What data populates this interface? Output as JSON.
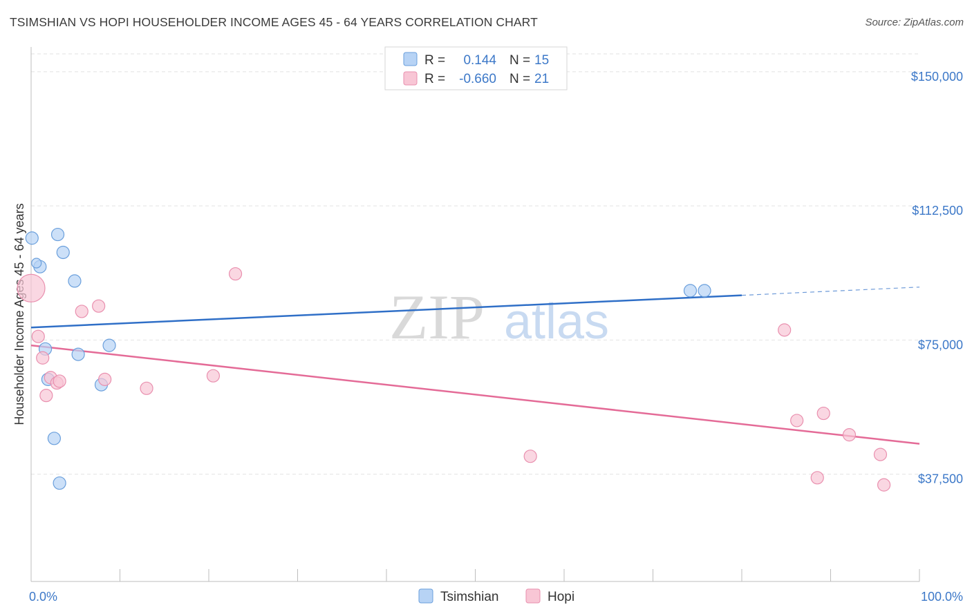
{
  "header": {
    "title": "TSIMSHIAN VS HOPI HOUSEHOLDER INCOME AGES 45 - 64 YEARS CORRELATION CHART",
    "source": "Source: ZipAtlas.com"
  },
  "colors": {
    "tsimshian_fill": "#b7d3f5",
    "tsimshian_stroke": "#6a9fdc",
    "tsimshian_line": "#2f6fc7",
    "hopi_fill": "#f8c6d5",
    "hopi_stroke": "#e98fae",
    "hopi_line": "#e46b97",
    "grid": "#e2e2e2",
    "axis_text": "#3c78c8"
  },
  "legend": {
    "rows": [
      {
        "r_label": "R =",
        "r_value": "0.144",
        "n_label": "N =",
        "n_value": "15"
      },
      {
        "r_label": "R =",
        "r_value": "-0.660",
        "n_label": "N =",
        "n_value": "21"
      }
    ]
  },
  "watermark": {
    "zip": "ZIP",
    "atlas": "atlas"
  },
  "chart_data": {
    "type": "scatter",
    "title": "TSIMSHIAN VS HOPI HOUSEHOLDER INCOME AGES 45 - 64 YEARS CORRELATION CHART",
    "xlabel": "",
    "ylabel": "Householder Income Ages 45 - 64 years",
    "xlim": [
      0,
      100
    ],
    "ylim": [
      7500,
      155000
    ],
    "x_tick_labels": [
      "0.0%",
      "100.0%"
    ],
    "y_ticks": [
      37500,
      75000,
      112500,
      150000
    ],
    "y_tick_labels": [
      "$37,500",
      "$75,000",
      "$112,500",
      "$150,000"
    ],
    "series": [
      {
        "name": "Tsimshian",
        "points": [
          {
            "x": 0.1,
            "y": 103500,
            "r": 9
          },
          {
            "x": 1.0,
            "y": 95500,
            "r": 9
          },
          {
            "x": 3.0,
            "y": 104500,
            "r": 9
          },
          {
            "x": 3.6,
            "y": 99500,
            "r": 9
          },
          {
            "x": 4.9,
            "y": 91500,
            "r": 9
          },
          {
            "x": 1.6,
            "y": 72500,
            "r": 9
          },
          {
            "x": 5.3,
            "y": 71000,
            "r": 9
          },
          {
            "x": 8.8,
            "y": 73500,
            "r": 9
          },
          {
            "x": 1.9,
            "y": 64000,
            "r": 9
          },
          {
            "x": 7.9,
            "y": 62500,
            "r": 9
          },
          {
            "x": 2.6,
            "y": 47500,
            "r": 9
          },
          {
            "x": 3.2,
            "y": 35000,
            "r": 9
          },
          {
            "x": 74.2,
            "y": 88800,
            "r": 9
          },
          {
            "x": 75.8,
            "y": 88800,
            "r": 9
          },
          {
            "x": 0.6,
            "y": 96500,
            "r": 7
          }
        ],
        "trend": {
          "x0": 0,
          "y0": 78500,
          "x1": 80,
          "y1": 87500,
          "dash_to_x": 100,
          "dash_to_y": 89800
        }
      },
      {
        "name": "Hopi",
        "points": [
          {
            "x": 0.0,
            "y": 89500,
            "r": 20
          },
          {
            "x": 0.8,
            "y": 76000,
            "r": 9
          },
          {
            "x": 1.3,
            "y": 70000,
            "r": 9
          },
          {
            "x": 1.7,
            "y": 59500,
            "r": 9
          },
          {
            "x": 2.2,
            "y": 64500,
            "r": 9
          },
          {
            "x": 2.9,
            "y": 63000,
            "r": 9
          },
          {
            "x": 3.2,
            "y": 63500,
            "r": 9
          },
          {
            "x": 5.7,
            "y": 83000,
            "r": 9
          },
          {
            "x": 7.6,
            "y": 84500,
            "r": 9
          },
          {
            "x": 8.3,
            "y": 64000,
            "r": 9
          },
          {
            "x": 13.0,
            "y": 61500,
            "r": 9
          },
          {
            "x": 20.5,
            "y": 65000,
            "r": 9
          },
          {
            "x": 23.0,
            "y": 93500,
            "r": 9
          },
          {
            "x": 56.2,
            "y": 42500,
            "r": 9
          },
          {
            "x": 84.8,
            "y": 77800,
            "r": 9
          },
          {
            "x": 86.2,
            "y": 52500,
            "r": 9
          },
          {
            "x": 88.5,
            "y": 36500,
            "r": 9
          },
          {
            "x": 89.2,
            "y": 54500,
            "r": 9
          },
          {
            "x": 92.1,
            "y": 48500,
            "r": 9
          },
          {
            "x": 95.6,
            "y": 43000,
            "r": 9
          },
          {
            "x": 96.0,
            "y": 34500,
            "r": 9
          }
        ],
        "trend": {
          "x0": 0,
          "y0": 73500,
          "x1": 100,
          "y1": 46000
        }
      }
    ]
  },
  "bottom_legend": {
    "items": [
      "Tsimshian",
      "Hopi"
    ]
  }
}
